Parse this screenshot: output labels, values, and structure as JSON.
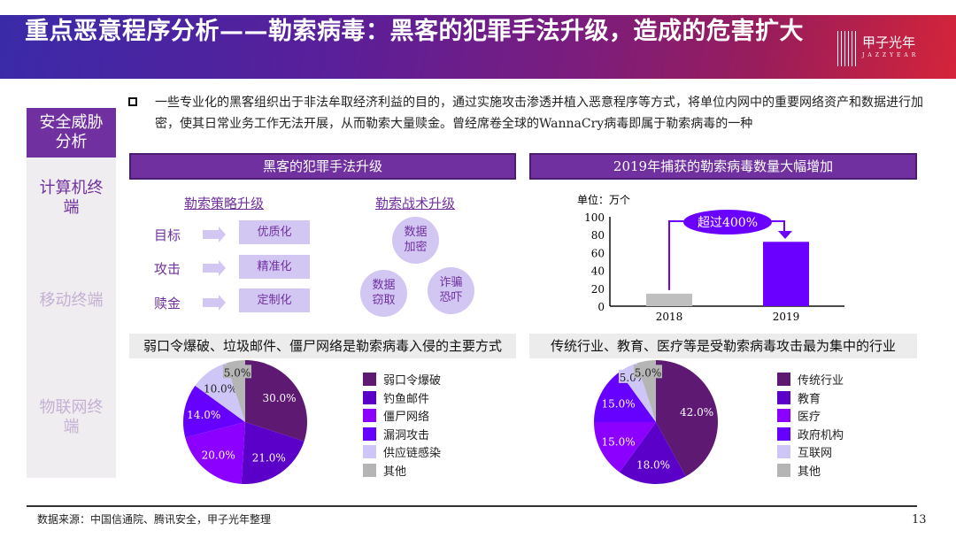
{
  "header": {
    "title": "重点恶意程序分析——勒索病毒：黑客的犯罪手法升级，造成的危害扩大",
    "logo_name": "甲子光年",
    "logo_sub": "JAZZYEAR"
  },
  "sidebar": {
    "items": [
      {
        "label": "安全威胁分析",
        "state": "active"
      },
      {
        "label": "计算机终端",
        "state": "current"
      },
      {
        "label": "移动终端",
        "state": "inactive"
      },
      {
        "label": "物联网终端",
        "state": "inactive"
      }
    ]
  },
  "intro": "一些专业化的黑客组织出于非法牟取经济利益的目的，通过实施攻击渗透并植入恶意程序等方式，将单位内网中的重要网络资产和数据进行加密，使其日常业务工作无法开展，从而勒索大量赎金。曾经席卷全球的WannaCry病毒即属于勒索病毒的一种",
  "left_panel": {
    "header": "黑客的犯罪手法升级",
    "strategy_title": "勒索策略升级",
    "tactics_title": "勒索战术升级",
    "strategy_rows": [
      {
        "label": "目标",
        "value": "优质化"
      },
      {
        "label": "攻击",
        "value": "精准化"
      },
      {
        "label": "赎金",
        "value": "定制化"
      }
    ],
    "tactics": [
      {
        "line1": "数据",
        "line2": "加密"
      },
      {
        "line1": "数据",
        "line2": "窃取"
      },
      {
        "line1": "诈骗",
        "line2": "恐吓"
      }
    ],
    "subheader": "弱口令爆破、垃圾邮件、僵尸网络是勒索病毒入侵的主要方式"
  },
  "right_panel": {
    "header": "2019年捕获的勒索病毒数量大幅增加",
    "subheader": "传统行业、教育、医疗等是受勒索病毒攻击最为集中的行业"
  },
  "chart_data": [
    {
      "type": "bar",
      "unit_label": "单位：万个",
      "categories": [
        "2018",
        "2019"
      ],
      "values": [
        14,
        72
      ],
      "ylim": [
        0,
        100
      ],
      "yticks": [
        0,
        20,
        40,
        60,
        80,
        100
      ],
      "colors": [
        "#bfbfbf",
        "#6a00ff"
      ],
      "annotation": "超过400%"
    },
    {
      "type": "pie",
      "title": "弱口令爆破、垃圾邮件、僵尸网络是勒索病毒入侵的主要方式",
      "labels": [
        "弱口令爆破",
        "钓鱼邮件",
        "僵尸网络",
        "漏洞攻击",
        "供应链感染",
        "其他"
      ],
      "values": [
        30.0,
        21.0,
        20.0,
        14.0,
        10.0,
        5.0
      ],
      "value_labels": [
        "30.0%",
        "21.0%",
        "20.0%",
        "14.0%",
        "10.0%",
        "5.0%"
      ],
      "colors": [
        "#5e1a73",
        "#5a00c8",
        "#8b00ff",
        "#6600ff",
        "#cdc6f6",
        "#b5b5b5"
      ],
      "legend": "right"
    },
    {
      "type": "pie",
      "title": "传统行业、教育、医疗等是受勒索病毒攻击最为集中的行业",
      "labels": [
        "传统行业",
        "教育",
        "医疗",
        "政府机构",
        "互联网",
        "其他"
      ],
      "values": [
        42.0,
        18.0,
        15.0,
        15.0,
        5.0,
        5.0
      ],
      "value_labels": [
        "42.0%",
        "18.0%",
        "15.0%",
        "15.0%",
        "5.0%",
        "5.0%"
      ],
      "colors": [
        "#5e1a73",
        "#5a00c8",
        "#8b00ff",
        "#6600ff",
        "#cdc6f6",
        "#b5b5b5"
      ],
      "legend": "right"
    }
  ],
  "footer": {
    "source": "数据来源：中国信通院、腾讯安全，甲子光年整理",
    "page": "13"
  }
}
